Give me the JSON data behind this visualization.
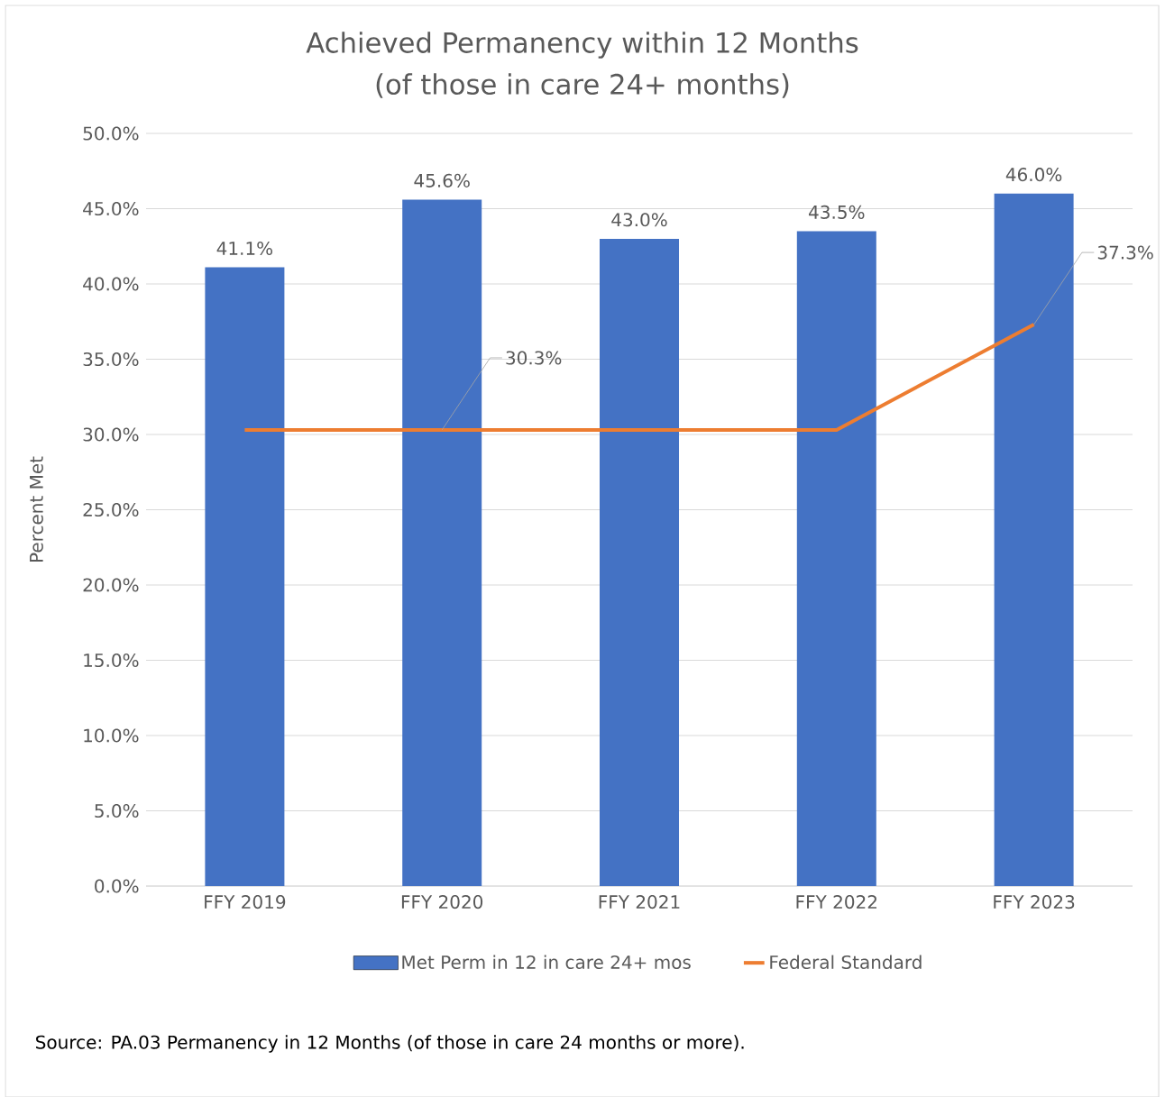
{
  "chart_data": {
    "type": "bar",
    "title": "Achieved Permanency within 12 Months",
    "subtitle": "(of those in care 24+ months)",
    "ylabel": "Percent Met",
    "categories": [
      "FFY 2019",
      "FFY 2020",
      "FFY 2021",
      "FFY 2022",
      "FFY 2023"
    ],
    "series": [
      {
        "name": "Met Perm in 12 in care 24+ mos",
        "color": "#4472c4",
        "values": [
          41.1,
          45.6,
          43.0,
          43.5,
          46.0
        ],
        "value_labels": [
          "41.1%",
          "45.6%",
          "43.0%",
          "43.5%",
          "46.0%"
        ]
      },
      {
        "name": "Federal Standard",
        "type": "line",
        "color": "#ed7d31",
        "values": [
          30.3,
          30.3,
          30.3,
          30.3,
          37.3
        ],
        "value_labels": [
          null,
          "30.3%",
          null,
          null,
          "37.3%"
        ]
      }
    ],
    "ylim": [
      0,
      50
    ],
    "yticks": [
      {
        "value": 0,
        "label": "0.0%"
      },
      {
        "value": 5,
        "label": "5.0%"
      },
      {
        "value": 10,
        "label": "10.0%"
      },
      {
        "value": 15,
        "label": "15.0%"
      },
      {
        "value": 20,
        "label": "20.0%"
      },
      {
        "value": 25,
        "label": "25.0%"
      },
      {
        "value": 30,
        "label": "30.0%"
      },
      {
        "value": 35,
        "label": "35.0%"
      },
      {
        "value": 40,
        "label": "40.0%"
      },
      {
        "value": 45,
        "label": "45.0%"
      },
      {
        "value": 50,
        "label": "50.0%"
      }
    ],
    "grid": "y",
    "legend": "bottom",
    "annotations": [
      "Source: PA.03 Permanency in 12 Months (of those in care 24 months or more)."
    ]
  }
}
